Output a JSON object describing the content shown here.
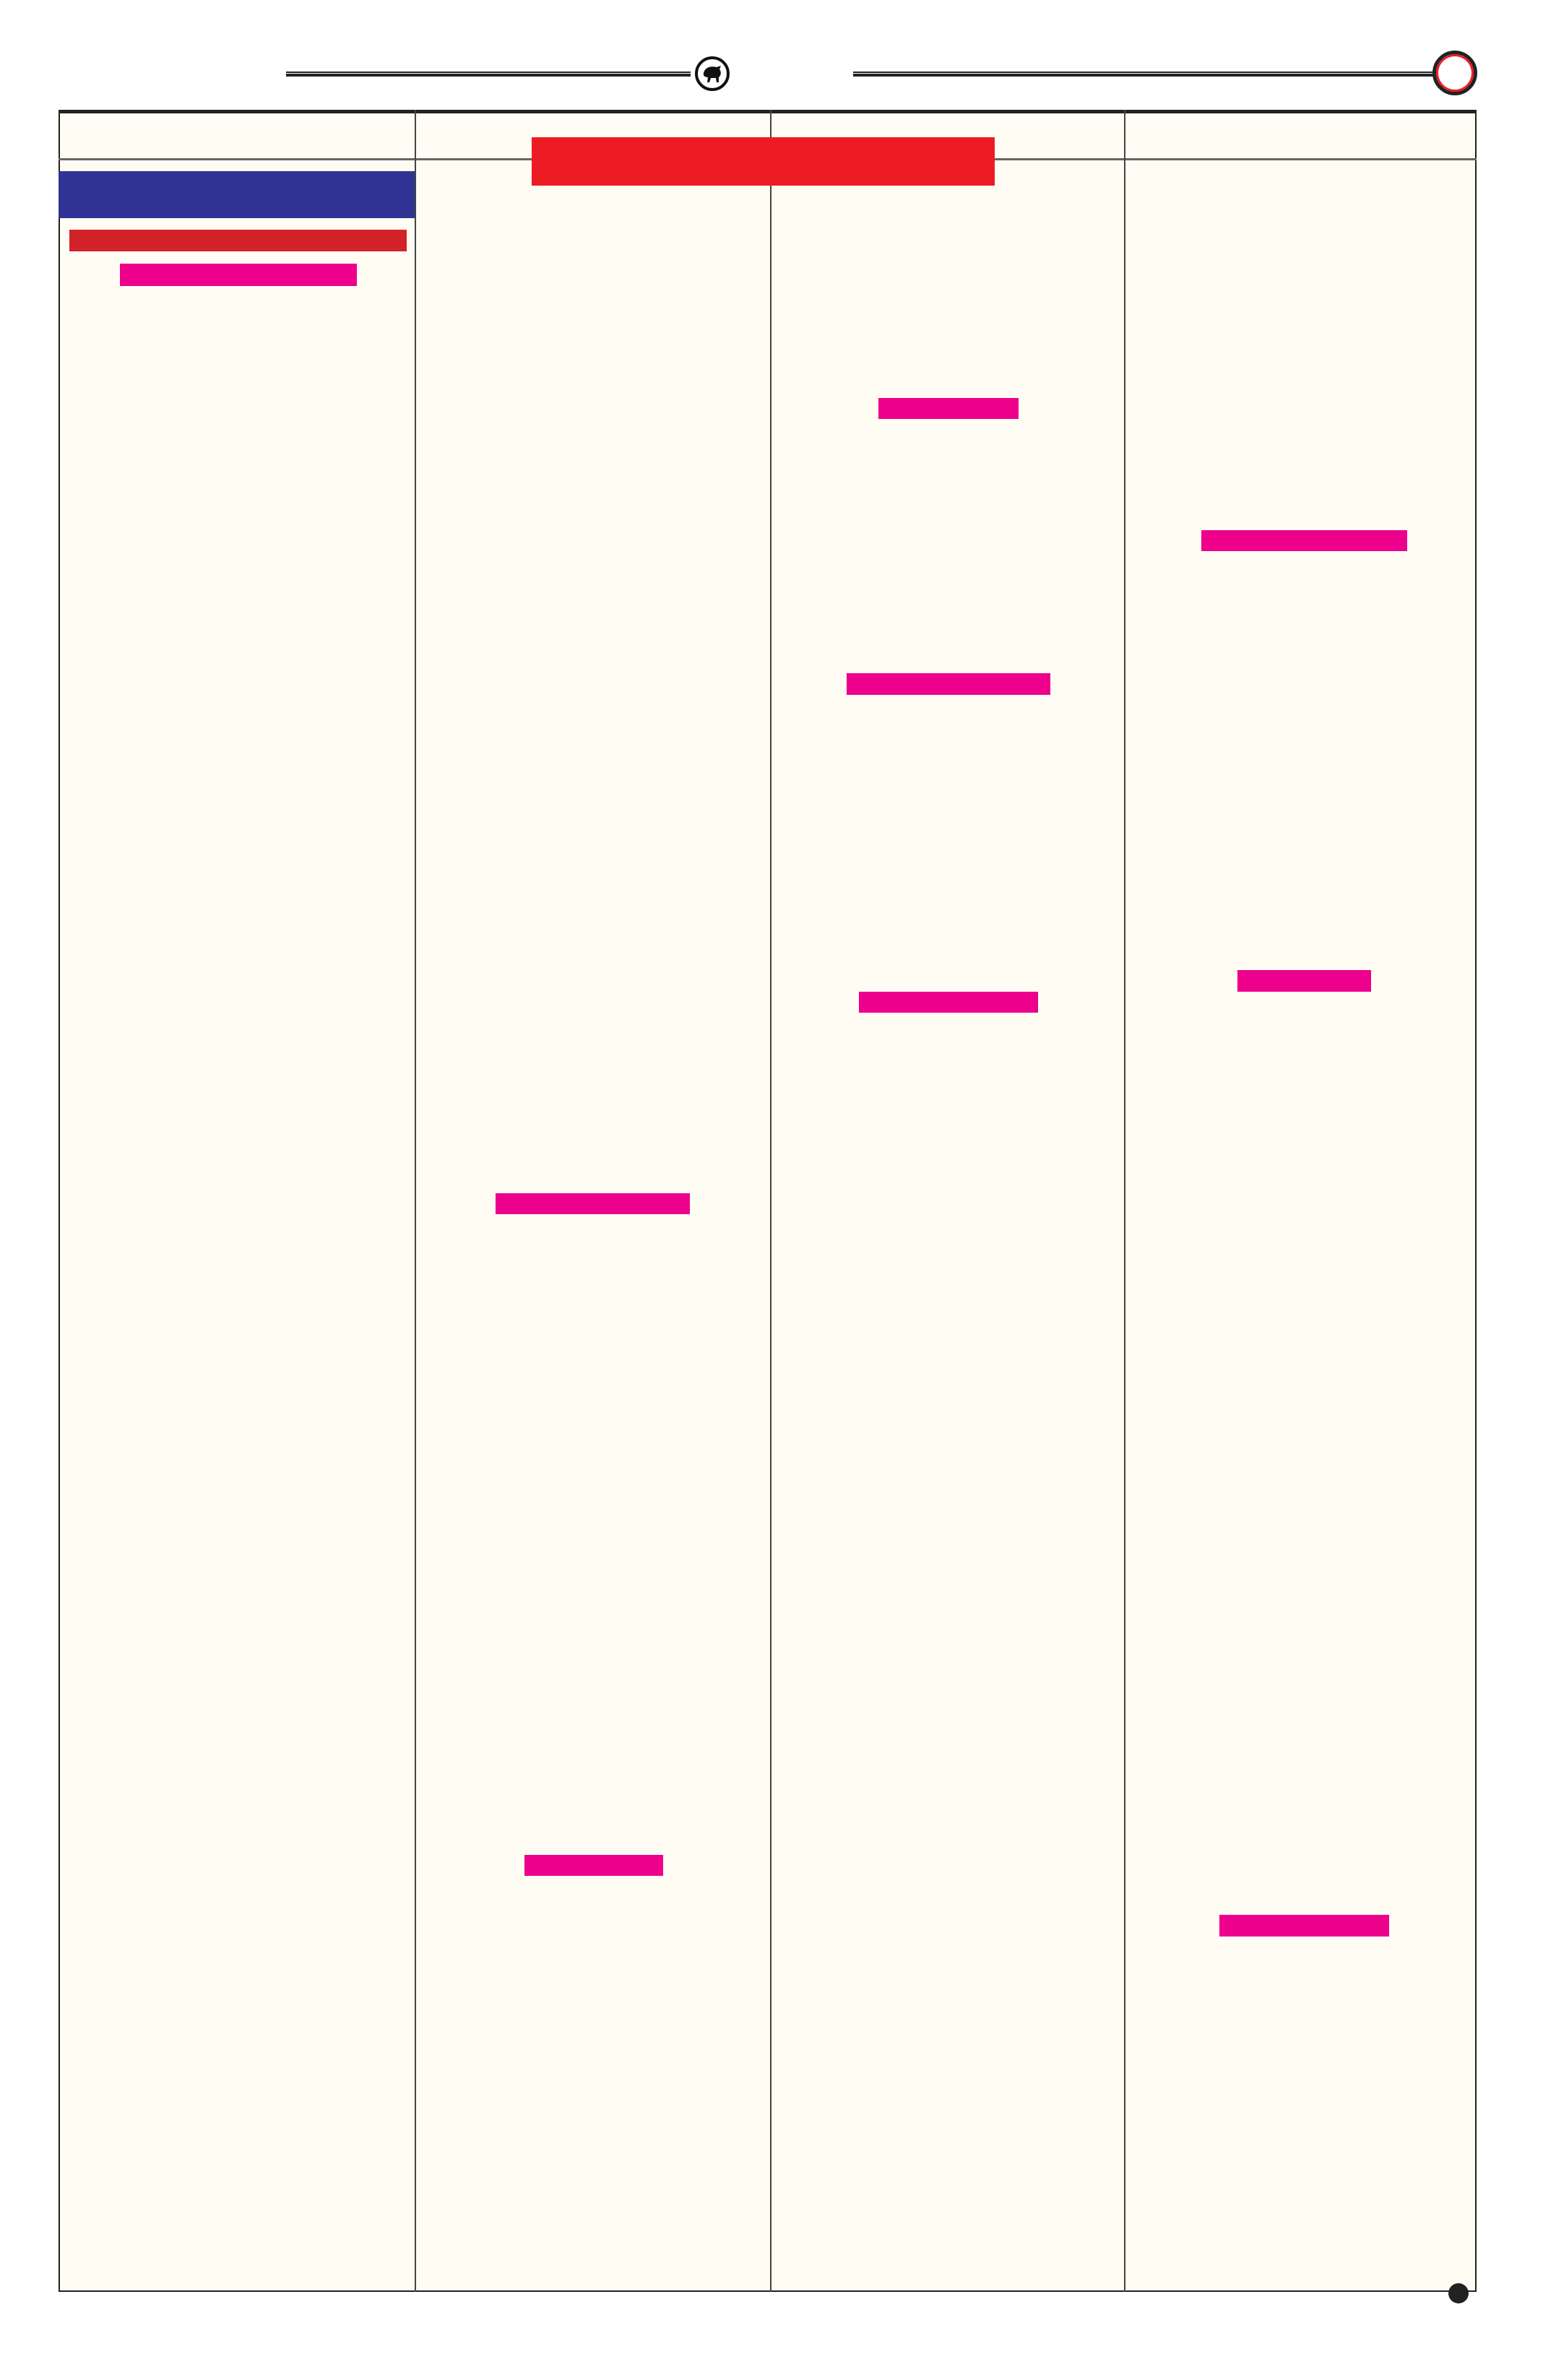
{
  "colors": {
    "page_background": "#ffffff",
    "panel_background": "#fefcf3",
    "banner_red": "#ed1c24",
    "block_blue": "#303394",
    "bar_dark_red": "#d2232a",
    "bar_pink": "#ec008c",
    "rule_black": "#222222"
  },
  "header": {
    "emblem_icon": "bull-emblem-icon",
    "page_marker_icon": "red-ring-icon"
  },
  "columns": 4,
  "footer": {
    "marker_icon": "black-dot-icon"
  }
}
